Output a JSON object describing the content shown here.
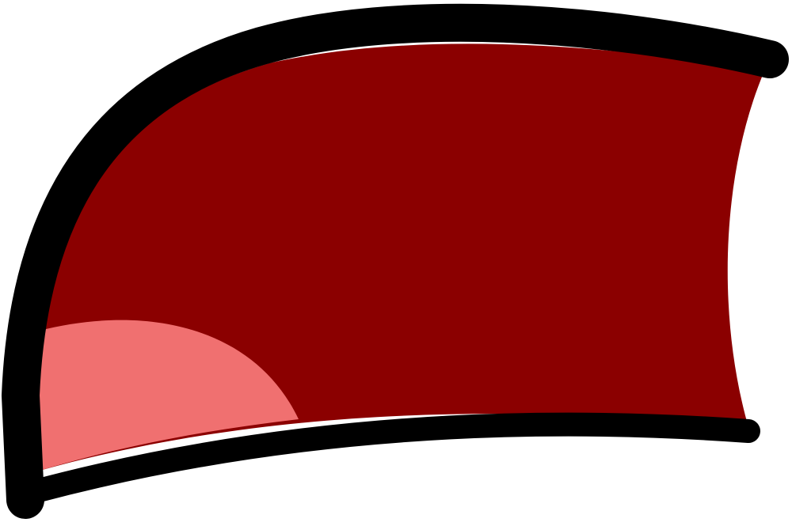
{
  "image": {
    "subject": "cartoon-open-mouth",
    "colors": {
      "outline": "#000000",
      "mouth_interior": "#8b0000",
      "tongue": "#f07070",
      "background": "#ffffff"
    }
  }
}
